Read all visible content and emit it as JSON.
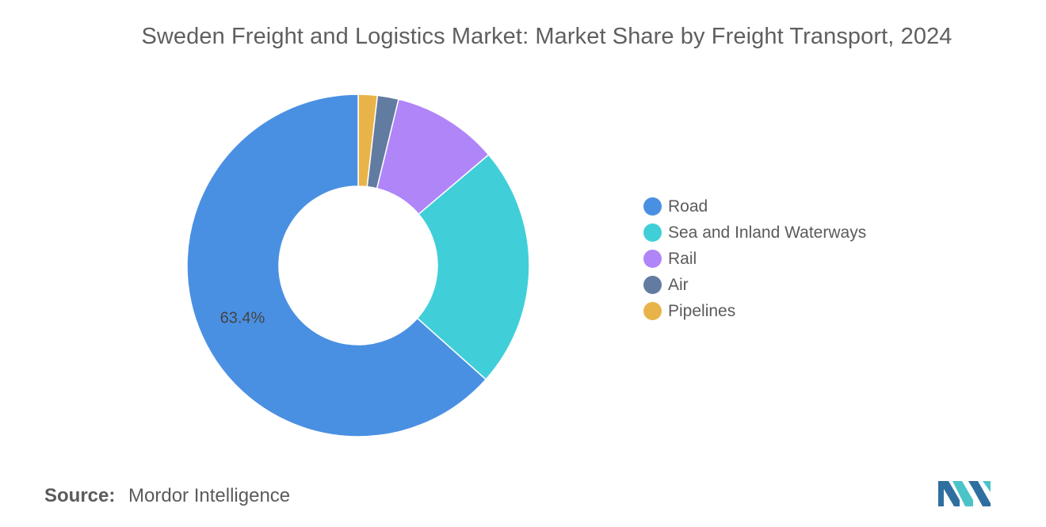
{
  "chart_data": {
    "type": "pie",
    "title": "Sweden Freight and Logistics Market: Market Share by Freight Transport, 2024",
    "categories": [
      "Road",
      "Sea and Inland Waterways",
      "Rail",
      "Air",
      "Pipelines"
    ],
    "values": [
      63.4,
      22.8,
      10.0,
      2.0,
      1.8
    ],
    "data_labels": [
      "63.4%",
      "",
      "",
      "",
      ""
    ],
    "colors": [
      "#4a90e2",
      "#40cfd9",
      "#b085f8",
      "#627ba0",
      "#e8b44a"
    ],
    "donut": true,
    "legend_position": "right"
  },
  "source": {
    "label": "Source:",
    "value": "Mordor Intelligence"
  },
  "logo": {
    "icon": "mordor-intelligence-logo-icon",
    "colors": [
      "#2f6f9f",
      "#4cc3c8"
    ]
  }
}
